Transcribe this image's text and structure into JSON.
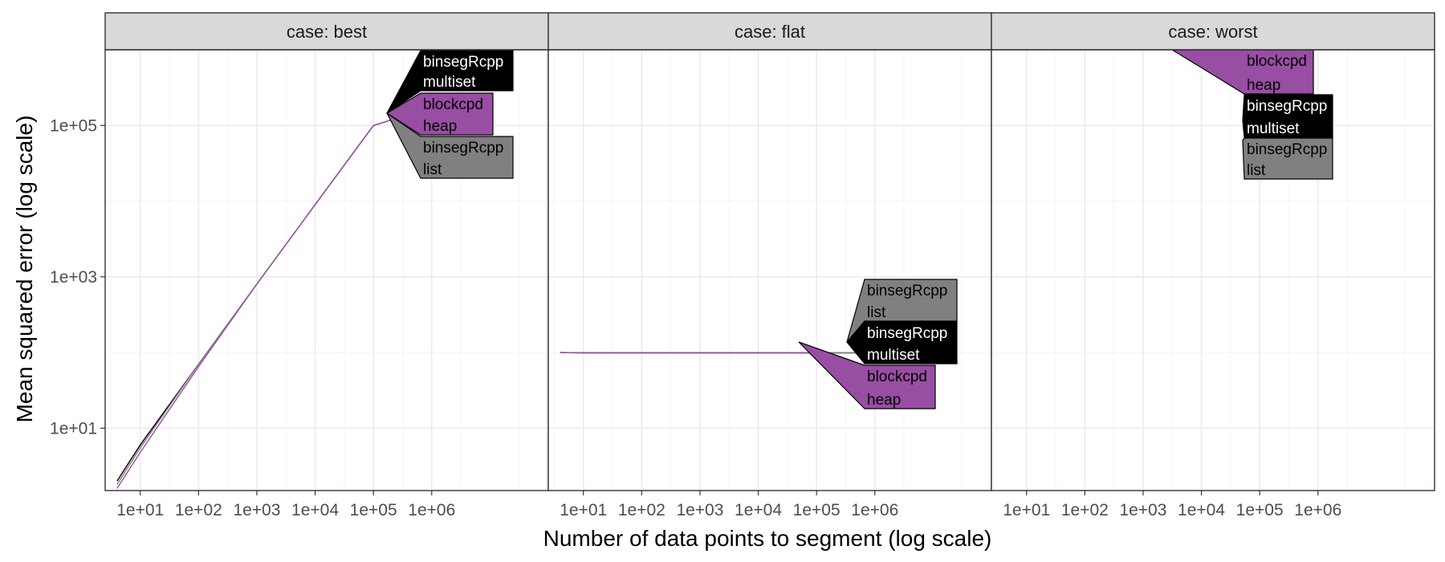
{
  "chart_data": {
    "type": "line",
    "xlabel": "Number of data points to segment (log scale)",
    "ylabel": "Mean squared error (log scale)",
    "x_scale": "log10",
    "y_scale": "log10",
    "xlim": [
      2.5,
      100000000
    ],
    "ylim": [
      1.5,
      1000000
    ],
    "x_ticks": [
      10,
      100,
      1000,
      10000,
      100000,
      1000000
    ],
    "x_tick_labels": [
      "1e+01",
      "1e+02",
      "1e+03",
      "1e+04",
      "1e+05",
      "1e+06"
    ],
    "y_ticks": [
      10,
      1000,
      100000
    ],
    "y_tick_labels": [
      "1e+01",
      "1e+03",
      "1e+05"
    ],
    "grid": true,
    "colors": {
      "binsegRcpp multiset": "#000000",
      "blockcpd heap": "#984EA3",
      "binsegRcpp list": "#808080",
      "panel_border": "#333333",
      "strip_fill": "#D9D9D9",
      "grid_major": "#EBEBEB",
      "grid_minor": "#F5F5F5"
    },
    "facets": [
      {
        "strip": "case: best",
        "series": [
          {
            "name": "binsegRcpp multiset",
            "x": [
              4,
              10,
              100,
              1000,
              10000,
              100000,
              300000
            ],
            "y": [
              2,
              6,
              70,
              800,
              9000,
              100000,
              130000
            ]
          },
          {
            "name": "binsegRcpp list",
            "x": [
              4,
              10,
              100,
              1000,
              10000,
              100000,
              300000
            ],
            "y": [
              1.8,
              5.5,
              70,
              800,
              9000,
              100000,
              130000
            ]
          },
          {
            "name": "blockcpd heap",
            "x": [
              4,
              10,
              100,
              1000,
              10000,
              100000,
              300000
            ],
            "y": [
              1.6,
              4.8,
              65,
              800,
              9000,
              100000,
              130000
            ]
          }
        ],
        "labels": [
          {
            "series": "binsegRcpp multiset",
            "line1": "binsegRcpp",
            "line2": "multiset"
          },
          {
            "series": "blockcpd heap",
            "line1": "blockcpd",
            "line2": "heap"
          },
          {
            "series": "binsegRcpp list",
            "line1": "binsegRcpp",
            "line2": "list"
          }
        ]
      },
      {
        "strip": "case: flat",
        "series": [
          {
            "name": "binsegRcpp multiset",
            "x": [
              4,
              10,
              100,
              1000,
              10000,
              100000,
              500000
            ],
            "y": [
              100,
              99,
              99,
              99,
              99,
              99,
              99
            ]
          },
          {
            "name": "binsegRcpp list",
            "x": [
              4,
              10,
              100,
              1000,
              10000,
              100000,
              500000
            ],
            "y": [
              100,
              99,
              99,
              99,
              99,
              99,
              99
            ]
          },
          {
            "name": "blockcpd heap",
            "x": [
              4,
              10,
              100,
              1000,
              10000,
              100000
            ],
            "y": [
              100,
              99,
              99,
              99,
              99,
              99
            ]
          }
        ],
        "labels": [
          {
            "series": "binsegRcpp list",
            "line1": "binsegRcpp",
            "line2": "list"
          },
          {
            "series": "binsegRcpp multiset",
            "line1": "binsegRcpp",
            "line2": "multiset"
          },
          {
            "series": "blockcpd heap",
            "line1": "blockcpd",
            "line2": "heap"
          }
        ]
      },
      {
        "strip": "case: worst",
        "series": [],
        "labels": [
          {
            "series": "blockcpd heap",
            "line1": "blockcpd",
            "line2": "heap"
          },
          {
            "series": "binsegRcpp multiset",
            "line1": "binsegRcpp",
            "line2": "multiset"
          },
          {
            "series": "binsegRcpp list",
            "line1": "binsegRcpp",
            "line2": "list"
          }
        ]
      }
    ]
  }
}
